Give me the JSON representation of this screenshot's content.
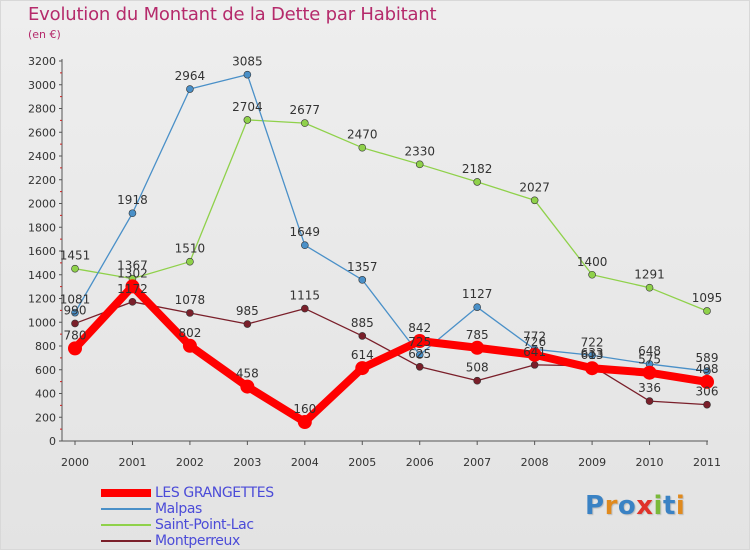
{
  "title": "Evolution du Montant de la Dette par Habitant",
  "unit": "(en €)",
  "logo": {
    "text": "Proxiti",
    "letter_colors": [
      "#3a82c4",
      "#e08a1e",
      "#3a82c4",
      "#e0322a",
      "#7ab93a",
      "#3a82c4",
      "#e08a1e"
    ]
  },
  "chart_data": {
    "type": "line",
    "title": "Evolution du Montant de la Dette par Habitant",
    "subtitle": "(en €)",
    "x": [
      "2000",
      "2001",
      "2002",
      "2003",
      "2004",
      "2005",
      "2006",
      "2007",
      "2008",
      "2009",
      "2010",
      "2011"
    ],
    "ylim": [
      0,
      3200
    ],
    "yticks": [
      "0",
      "200",
      "400",
      "600",
      "800",
      "1000",
      "1200",
      "1400",
      "1600",
      "1800",
      "2000",
      "2200",
      "2400",
      "2600",
      "2800",
      "3000",
      "3200"
    ],
    "grid": false,
    "legend_position": "bottom-left",
    "series": [
      {
        "name": "LES GRANGETTES",
        "color": "#ff0000",
        "values": [
          780,
          1302,
          802,
          458,
          160,
          614,
          842,
          785,
          726,
          613,
          575,
          498
        ],
        "labels": [
          "780",
          "1302",
          "802",
          "458",
          "160",
          "614",
          "842",
          "785",
          "726",
          "613",
          "575",
          "498"
        ]
      },
      {
        "name": "Malpas",
        "color": "#4a90c8",
        "values": [
          1081,
          1918,
          2964,
          3085,
          1649,
          1357,
          725,
          1127,
          772,
          722,
          648,
          589
        ],
        "labels": [
          "1081",
          "1918",
          "2964",
          "3085",
          "1649",
          "1357",
          "725",
          "1127",
          "772",
          "722",
          "648",
          "589"
        ]
      },
      {
        "name": "Saint-Point-Lac",
        "color": "#8fd14a",
        "values": [
          1451,
          1367,
          1510,
          2704,
          2677,
          2470,
          2330,
          2182,
          2027,
          1400,
          1291,
          1095
        ],
        "labels": [
          "1451",
          "1367",
          "1510",
          "2704",
          "2677",
          "2470",
          "2330",
          "2182",
          "2027",
          "1400",
          "1291",
          "1095"
        ]
      },
      {
        "name": "Montperreux",
        "color": "#7a1f2a",
        "values": [
          990,
          1172,
          1078,
          985,
          1115,
          885,
          625,
          508,
          641,
          633,
          336,
          306
        ],
        "labels": [
          "990",
          "1172",
          "1078",
          "985",
          "1115",
          "885",
          "625",
          "508",
          "641",
          "633",
          "336",
          "306"
        ]
      }
    ]
  }
}
